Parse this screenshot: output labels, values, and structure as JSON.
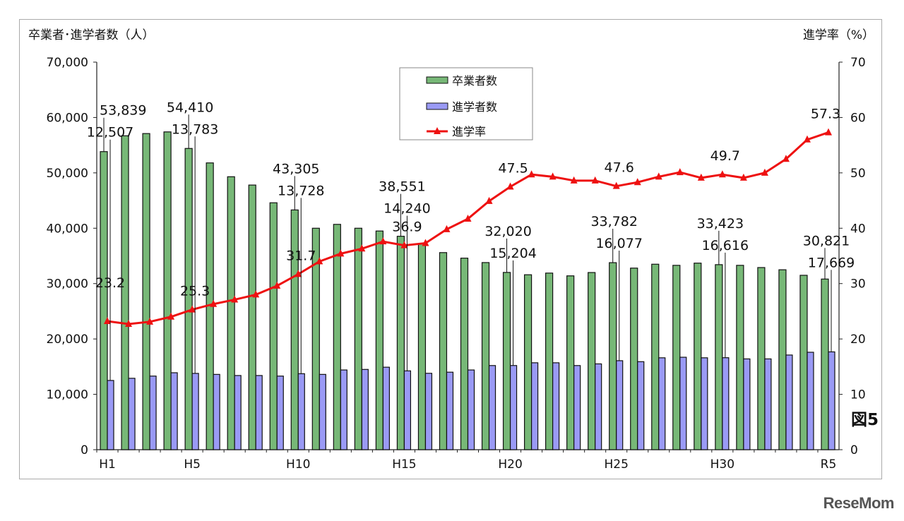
{
  "chart_data": {
    "type": "bar+line",
    "ylabel_left": "卒業者･進学者数（人）",
    "ylabel_right": "進学率（%）",
    "ylim_left": [
      0,
      70000
    ],
    "ylim_right": [
      0,
      70
    ],
    "yticks_left": [
      "0",
      "10,000",
      "20,000",
      "30,000",
      "40,000",
      "50,000",
      "60,000",
      "70,000"
    ],
    "yticks_right": [
      "0",
      "10",
      "20",
      "30",
      "40",
      "50",
      "60",
      "70"
    ],
    "legend_position": "top-center",
    "categories": [
      "H1",
      "H2",
      "H3",
      "H4",
      "H5",
      "H6",
      "H7",
      "H8",
      "H9",
      "H10",
      "H11",
      "H12",
      "H13",
      "H14",
      "H15",
      "H16",
      "H17",
      "H18",
      "H19",
      "H20",
      "H21",
      "H22",
      "H23",
      "H24",
      "H25",
      "H26",
      "H27",
      "H28",
      "H29",
      "H30",
      "R1",
      "R2",
      "R3",
      "R4",
      "R5"
    ],
    "xtick_labels": [
      "H1",
      "",
      "",
      "",
      "H5",
      "",
      "",
      "",
      "",
      "H10",
      "",
      "",
      "",
      "",
      "H15",
      "",
      "",
      "",
      "",
      "H20",
      "",
      "",
      "",
      "",
      "H25",
      "",
      "",
      "",
      "",
      "H30",
      "",
      "",
      "",
      "",
      "R5"
    ],
    "series": [
      {
        "name": "卒業者数",
        "type": "bar",
        "axis": "left",
        "color": "#77b877",
        "values": [
          53839,
          56700,
          57100,
          57400,
          54410,
          51800,
          49300,
          47800,
          44600,
          43305,
          40000,
          40700,
          40000,
          39500,
          38551,
          37200,
          35600,
          34600,
          33800,
          32020,
          31600,
          31900,
          31400,
          32000,
          33782,
          32800,
          33500,
          33300,
          33700,
          33423,
          33300,
          32900,
          32500,
          31500,
          30821
        ],
        "labels": {
          "0": "53,839",
          "4": "54,410",
          "9": "43,305",
          "14": "38,551",
          "19": "32,020",
          "24": "33,782",
          "29": "33,423",
          "34": "30,821"
        }
      },
      {
        "name": "進学者数",
        "type": "bar",
        "axis": "left",
        "color": "#9a9af5",
        "values": [
          12507,
          12900,
          13300,
          13900,
          13783,
          13600,
          13400,
          13400,
          13300,
          13728,
          13600,
          14400,
          14500,
          14900,
          14240,
          13800,
          14000,
          14400,
          15200,
          15204,
          15700,
          15700,
          15200,
          15500,
          16077,
          15900,
          16600,
          16700,
          16600,
          16616,
          16400,
          16400,
          17100,
          17600,
          17669
        ],
        "labels": {
          "0": "12,507",
          "4": "13,783",
          "9": "13,728",
          "14": "14,240",
          "19": "15,204",
          "24": "16,077",
          "29": "16,616",
          "34": "17,669"
        }
      },
      {
        "name": "進学率",
        "type": "line",
        "axis": "right",
        "color": "#ee1111",
        "marker": "triangle",
        "values": [
          23.2,
          22.7,
          23.1,
          24.0,
          25.3,
          26.3,
          27.1,
          28.0,
          29.6,
          31.7,
          34.0,
          35.4,
          36.3,
          37.6,
          36.9,
          37.3,
          39.8,
          41.7,
          44.9,
          47.5,
          49.7,
          49.3,
          48.6,
          48.6,
          47.6,
          48.3,
          49.3,
          50.1,
          49.1,
          49.7,
          49.1,
          50.0,
          52.5,
          56.0,
          57.3
        ],
        "labels": {
          "0": "23.2",
          "4": "25.3",
          "9": "31.7",
          "14": "36.9",
          "19": "47.5",
          "24": "47.6",
          "29": "49.7",
          "34": "57.3"
        }
      }
    ]
  },
  "figure_label": "図5",
  "watermark": "ReseMom"
}
